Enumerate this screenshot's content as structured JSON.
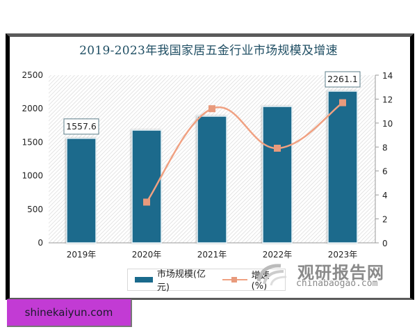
{
  "chart_data": {
    "type": "bar",
    "title": "2019-2023年我国家居五金行业市场规模及增速",
    "categories": [
      "2019年",
      "2020年",
      "2021年",
      "2022年",
      "2023年"
    ],
    "series": [
      {
        "name": "市场规模(亿元)",
        "type": "bar",
        "axis": "left",
        "color": "#1a6a8c",
        "values": [
          1557.6,
          1680,
          1888,
          2033,
          2261.1
        ]
      },
      {
        "name": "增速(%)",
        "type": "line",
        "axis": "right",
        "color": "#f0a182",
        "values": [
          null,
          3.4,
          11.2,
          7.9,
          11.7
        ]
      }
    ],
    "data_labels": [
      {
        "category": "2019年",
        "text": "1557.6"
      },
      {
        "category": "2023年",
        "text": "2261.1"
      }
    ],
    "left_axis": {
      "min": 0,
      "max": 2500,
      "ticks": [
        "0",
        "500",
        "1000",
        "1500",
        "2000",
        "2500"
      ]
    },
    "right_axis": {
      "min": 0,
      "max": 14,
      "ticks": [
        "0",
        "2",
        "4",
        "6",
        "8",
        "10",
        "12",
        "14"
      ]
    },
    "xlabel": "",
    "ylabel": "",
    "legend_position": "bottom",
    "grid": false,
    "background": "diagonal-hatch"
  },
  "legend": {
    "bar_label": "市场规模(亿元)",
    "line_label": "增速(%)"
  },
  "watermark": {
    "cn": "观研报告网",
    "en": "chinabaogao.com"
  },
  "badge": {
    "text": "shinekaiyun.com",
    "color": "#c23bd4"
  }
}
